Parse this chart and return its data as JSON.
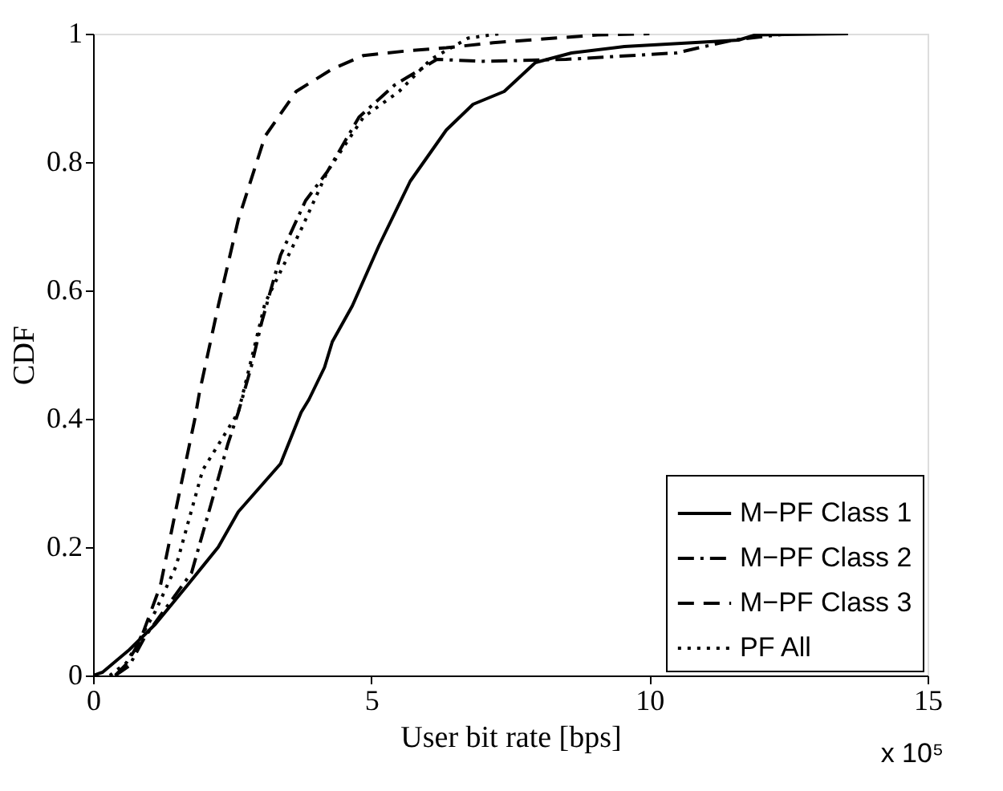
{
  "chart_data": {
    "type": "line",
    "xlabel": "User bit rate [bps]",
    "ylabel": "CDF",
    "xlim": [
      0,
      15
    ],
    "xticks": [
      0,
      5,
      10,
      15
    ],
    "ylim": [
      0,
      1
    ],
    "yticks": [
      0,
      0.2,
      0.4,
      0.6,
      0.8,
      1
    ],
    "legend": "bottom right",
    "grid": false,
    "marker": "none",
    "annotations": [
      "x 10⁵"
    ],
    "series": [
      {
        "name": "M−PF Class 1",
        "color": "#000000",
        "line_style": "solid",
        "x": [
          0,
          0.17,
          0.65,
          1.12,
          1.69,
          2.25,
          2.61,
          3.37,
          3.74,
          3.88,
          4.16,
          4.3,
          4.66,
          5.14,
          5.7,
          6.35,
          6.83,
          7.39,
          7.95,
          8.6,
          9.55,
          11.6,
          11.9,
          13.57
        ],
        "values": [
          0,
          0.005,
          0.04,
          0.08,
          0.14,
          0.2,
          0.255,
          0.33,
          0.41,
          0.43,
          0.48,
          0.52,
          0.576,
          0.67,
          0.77,
          0.85,
          0.89,
          0.91,
          0.955,
          0.97,
          0.98,
          0.99,
          0.998,
          1.0
        ]
      },
      {
        "name": "M−PF Class 2",
        "color": "#000000",
        "line_style": "dashdot",
        "x": [
          0.4,
          0.65,
          0.93,
          1.77,
          2.13,
          2.42,
          2.61,
          2.84,
          3.03,
          3.37,
          3.82,
          4.21,
          4.78,
          5.42,
          6.18,
          7.0,
          8.5,
          10.48,
          11.5,
          12.5
        ],
        "values": [
          0,
          0.015,
          0.06,
          0.16,
          0.27,
          0.36,
          0.41,
          0.48,
          0.55,
          0.655,
          0.74,
          0.785,
          0.87,
          0.92,
          0.96,
          0.957,
          0.96,
          0.97,
          0.99,
          1.0
        ]
      },
      {
        "name": "M−PF Class 3",
        "color": "#000000",
        "line_style": "dashed",
        "x": [
          0.4,
          0.59,
          0.84,
          1.21,
          1.54,
          1.83,
          1.91,
          2.25,
          2.61,
          3.09,
          3.65,
          4.3,
          4.86,
          5.62,
          6.35,
          7.19,
          9.07,
          10.0
        ],
        "values": [
          0,
          0.017,
          0.053,
          0.14,
          0.28,
          0.4,
          0.44,
          0.576,
          0.71,
          0.84,
          0.91,
          0.945,
          0.966,
          0.973,
          0.978,
          0.986,
          0.998,
          1.0
        ]
      },
      {
        "name": "PF All",
        "color": "#000000",
        "line_style": "dotted",
        "x": [
          0.3,
          0.6,
          1.12,
          1.49,
          1.97,
          2.61,
          2.81,
          3.09,
          3.74,
          4.21,
          4.86,
          5.5,
          6.07,
          6.74,
          7.3
        ],
        "values": [
          0,
          0.02,
          0.1,
          0.17,
          0.32,
          0.41,
          0.48,
          0.58,
          0.695,
          0.785,
          0.87,
          0.91,
          0.96,
          0.993,
          1.0
        ]
      }
    ]
  }
}
